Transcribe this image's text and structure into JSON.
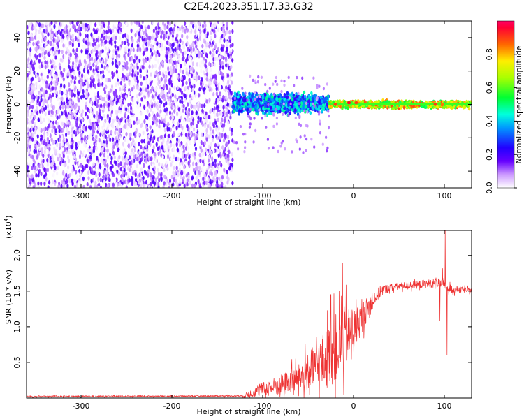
{
  "title": "C2E4.2023.351.17.33.G32",
  "chart_data": [
    {
      "type": "heatmap",
      "title": "C2E4.2023.351.17.33.G32",
      "xlabel": "Height of straight line (km)",
      "ylabel": "Frequency (Hz)",
      "xlim": [
        -360,
        130
      ],
      "ylim": [
        -50,
        50
      ],
      "x_ticks": [
        -300,
        -200,
        -100,
        0,
        100
      ],
      "y_ticks": [
        -40,
        -20,
        0,
        20,
        40
      ],
      "grid": false,
      "regions": [
        {
          "x_range": [
            -360,
            -133
          ],
          "frequency_band": [
            -50,
            50
          ],
          "normalized_amplitude": [
            0.0,
            0.2
          ]
        },
        {
          "x_range": [
            -133,
            -27
          ],
          "frequency_band": [
            -7,
            8
          ],
          "normalized_amplitude": [
            0.2,
            0.5
          ]
        },
        {
          "x_range": [
            -27,
            130
          ],
          "frequency_band": [
            -3,
            3
          ],
          "normalized_amplitude": [
            0.5,
            0.9
          ]
        }
      ],
      "peaks": [
        {
          "x": -20,
          "freq": 0,
          "amplitude": 0.9
        },
        {
          "x": -5,
          "freq": 1,
          "amplitude": 0.95
        },
        {
          "x": 3,
          "freq": 1,
          "amplitude": 0.9
        },
        {
          "x": 90,
          "freq": 0,
          "amplitude": 0.9
        },
        {
          "x": 98,
          "freq": 0,
          "amplitude": 0.85
        }
      ],
      "colorbar": {
        "label": "Normalized spectral amplitude",
        "range": [
          0,
          1
        ],
        "ticks": [
          "0.0",
          "0.2",
          "0.4",
          "0.6",
          "0.8"
        ]
      }
    },
    {
      "type": "line",
      "xlabel": "Height of straight line (km)",
      "ylabel": "SNR (10 * v/v)",
      "y_multiplier": "(x10",
      "y_multiplier_exp": "4",
      "y_multiplier_close": ")",
      "xlim": [
        -360,
        130
      ],
      "ylim": [
        0,
        2.35
      ],
      "x_ticks": [
        -300,
        -200,
        -100,
        0,
        100
      ],
      "y_ticks": [
        "0.5",
        "1.0",
        "1.5",
        "2.0"
      ],
      "grid": false,
      "series": [
        {
          "color": "#ee3333",
          "trend": [
            [
              -360,
              0.02
            ],
            [
              -120,
              0.03
            ],
            [
              -110,
              0.08
            ],
            [
              -100,
              0.12
            ],
            [
              -80,
              0.18
            ],
            [
              -60,
              0.28
            ],
            [
              -40,
              0.45
            ],
            [
              -30,
              0.55
            ],
            [
              -20,
              0.68
            ],
            [
              -10,
              0.82
            ],
            [
              0,
              0.95
            ],
            [
              10,
              1.15
            ],
            [
              20,
              1.35
            ],
            [
              30,
              1.5
            ],
            [
              40,
              1.55
            ],
            [
              60,
              1.58
            ],
            [
              80,
              1.6
            ],
            [
              95,
              1.62
            ],
            [
              105,
              1.53
            ],
            [
              130,
              1.51
            ]
          ],
          "noise": [
            [
              -360,
              0.01
            ],
            [
              -125,
              0.01
            ],
            [
              -115,
              0.05
            ],
            [
              -100,
              0.1
            ],
            [
              -60,
              0.2
            ],
            [
              -40,
              0.35
            ],
            [
              -25,
              0.45
            ],
            [
              -12,
              0.5
            ],
            [
              0,
              0.3
            ],
            [
              20,
              0.12
            ],
            [
              40,
              0.05
            ],
            [
              80,
              0.06
            ],
            [
              100,
              0.07
            ],
            [
              130,
              0.03
            ]
          ],
          "spikes": [
            {
              "x": 101,
              "y": 2.35
            },
            {
              "x": 103,
              "y": 0.6
            },
            {
              "x": -12,
              "y": 1.9
            },
            {
              "x": -25,
              "y": 1.45
            },
            {
              "x": 95,
              "y": 1.08
            },
            {
              "x": 98,
              "y": 1.82
            }
          ]
        }
      ]
    }
  ]
}
